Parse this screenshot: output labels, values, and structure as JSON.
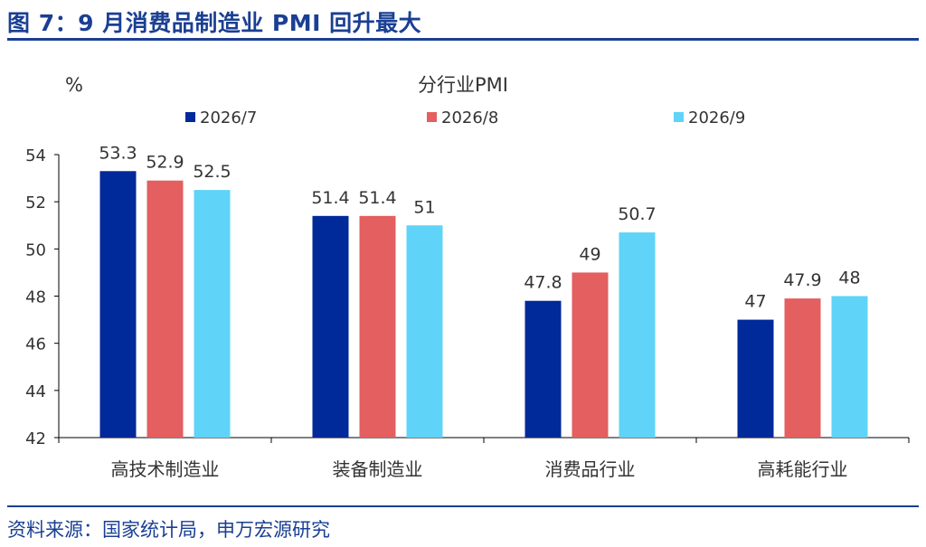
{
  "figure": {
    "title": "图 7：9 月消费品制造业 PMI 回升最大",
    "source": "资料来源：国家统计局，申万宏源研究"
  },
  "chart_data": {
    "type": "bar",
    "title": "分行业PMI",
    "ylabel": "%",
    "xlabel": "",
    "ylim": [
      42,
      54
    ],
    "yticks": [
      42,
      44,
      46,
      48,
      50,
      52,
      54
    ],
    "categories": [
      "高技术制造业",
      "装备制造业",
      "消费品行业",
      "高耗能行业"
    ],
    "series": [
      {
        "name": "2026/7",
        "color": "#00299a",
        "values": [
          53.3,
          51.4,
          47.8,
          47
        ]
      },
      {
        "name": "2026/8",
        "color": "#e35f60",
        "values": [
          52.9,
          51.4,
          49,
          47.9
        ]
      },
      {
        "name": "2026/9",
        "color": "#5fd3f8",
        "values": [
          52.5,
          51,
          50.7,
          48
        ]
      }
    ],
    "legend_position": "top",
    "grid": false,
    "data_labels": true
  }
}
